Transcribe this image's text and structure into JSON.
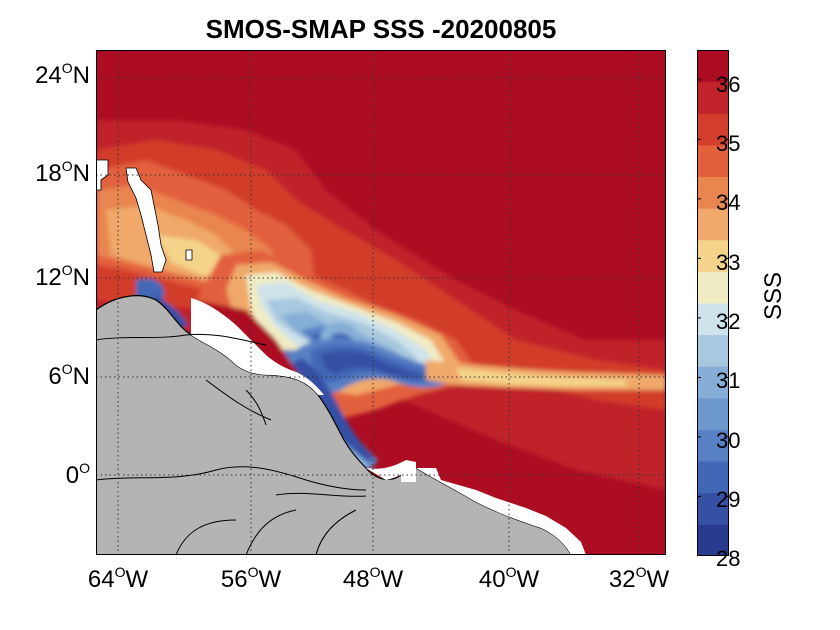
{
  "title": "SMOS-SMAP SSS -20200805",
  "colorbar": {
    "label": "SSS",
    "ticks": [
      "36",
      "35",
      "34",
      "33",
      "32",
      "31",
      "30",
      "29",
      "28"
    ],
    "min": 28,
    "max": 36.5,
    "colors": [
      "#2a3a8f",
      "#3550a5",
      "#4267b6",
      "#5880c4",
      "#6c98cc",
      "#86aed6",
      "#a8c8e0",
      "#cfe3ea",
      "#f0ecc4",
      "#f4d38a",
      "#f0a96a",
      "#e9854f",
      "#e2603c",
      "#d23d2c",
      "#c0242a",
      "#ac0d23"
    ]
  },
  "y_axis": {
    "ticks": [
      {
        "deg": "24",
        "hem": "N"
      },
      {
        "deg": "18",
        "hem": "N"
      },
      {
        "deg": "12",
        "hem": "N"
      },
      {
        "deg": "6",
        "hem": "N"
      },
      {
        "deg": "0",
        "hem": ""
      }
    ]
  },
  "x_axis": {
    "ticks": [
      {
        "deg": "64",
        "hem": "W"
      },
      {
        "deg": "56",
        "hem": "W"
      },
      {
        "deg": "48",
        "hem": "W"
      },
      {
        "deg": "40",
        "hem": "W"
      },
      {
        "deg": "32",
        "hem": "W"
      }
    ]
  },
  "colors": {
    "land": "#b4b4b4",
    "ocean_high_salinity": "#ac0d23",
    "grid": "#333333"
  }
}
